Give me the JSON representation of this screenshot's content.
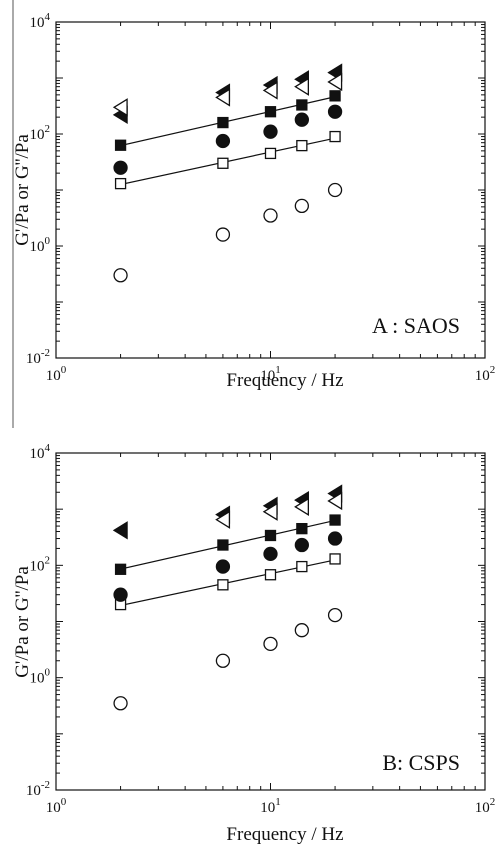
{
  "chart_data": [
    {
      "type": "scatter",
      "panel_label": "A : SAOS",
      "xlabel": "Frequency / Hz",
      "ylabel": "G'/Pa or G''/Pa",
      "x_scale": "log",
      "y_scale": "log",
      "xlim": [
        1,
        100
      ],
      "ylim": [
        0.01,
        10000
      ],
      "x_ticks": [
        {
          "base": "10",
          "exp": "0",
          "value": 1
        },
        {
          "base": "10",
          "exp": "1",
          "value": 10
        },
        {
          "base": "10",
          "exp": "2",
          "value": 100
        }
      ],
      "y_ticks": [
        {
          "base": "10",
          "exp": "-2",
          "value": 0.01
        },
        {
          "base": "10",
          "exp": "0",
          "value": 1
        },
        {
          "base": "10",
          "exp": "2",
          "value": 100
        },
        {
          "base": "10",
          "exp": "4",
          "value": 10000
        }
      ],
      "series": [
        {
          "marker": "square-filled",
          "fit_line": true,
          "x": [
            2,
            6,
            10,
            14,
            20
          ],
          "y": [
            63,
            160,
            250,
            330,
            480
          ]
        },
        {
          "marker": "square-open",
          "fit_line": true,
          "x": [
            2,
            6,
            10,
            14,
            20
          ],
          "y": [
            13,
            30,
            45,
            62,
            90
          ]
        },
        {
          "marker": "circle-filled",
          "fit_line": false,
          "x": [
            2,
            6,
            10,
            14,
            20
          ],
          "y": [
            25,
            75,
            110,
            180,
            250
          ]
        },
        {
          "marker": "circle-open",
          "fit_line": false,
          "x": [
            2,
            6,
            10,
            14,
            20
          ],
          "y": [
            0.3,
            1.6,
            3.5,
            5.2,
            10
          ]
        },
        {
          "marker": "triangle-left-filled",
          "fit_line": false,
          "x": [
            2,
            6,
            10,
            14,
            20
          ],
          "y": [
            220,
            550,
            750,
            950,
            1250
          ]
        },
        {
          "marker": "triangle-left-open",
          "fit_line": false,
          "x": [
            2,
            6,
            10,
            14,
            20
          ],
          "y": [
            300,
            450,
            600,
            700,
            850
          ]
        }
      ]
    },
    {
      "type": "scatter",
      "panel_label": "B: CSPS",
      "xlabel": "Frequency / Hz",
      "ylabel": "G'/Pa or G''/Pa",
      "x_scale": "log",
      "y_scale": "log",
      "xlim": [
        1,
        100
      ],
      "ylim": [
        0.01,
        10000
      ],
      "x_ticks": [
        {
          "base": "10",
          "exp": "0",
          "value": 1
        },
        {
          "base": "10",
          "exp": "1",
          "value": 10
        },
        {
          "base": "10",
          "exp": "2",
          "value": 100
        }
      ],
      "y_ticks": [
        {
          "base": "10",
          "exp": "-2",
          "value": 0.01
        },
        {
          "base": "10",
          "exp": "0",
          "value": 1
        },
        {
          "base": "10",
          "exp": "2",
          "value": 100
        },
        {
          "base": "10",
          "exp": "4",
          "value": 10000
        }
      ],
      "series": [
        {
          "marker": "square-filled",
          "fit_line": true,
          "x": [
            2,
            6,
            10,
            14,
            20
          ],
          "y": [
            85,
            230,
            340,
            450,
            640
          ]
        },
        {
          "marker": "square-open",
          "fit_line": true,
          "x": [
            2,
            6,
            10,
            14,
            20
          ],
          "y": [
            20,
            45,
            68,
            95,
            130
          ]
        },
        {
          "marker": "circle-filled",
          "fit_line": false,
          "x": [
            2,
            6,
            10,
            14,
            20
          ],
          "y": [
            30,
            95,
            160,
            230,
            300
          ]
        },
        {
          "marker": "circle-open",
          "fit_line": false,
          "x": [
            2,
            6,
            10,
            14,
            20
          ],
          "y": [
            0.35,
            2,
            4,
            7,
            13
          ]
        },
        {
          "marker": "triangle-left-filled",
          "fit_line": false,
          "x": [
            2,
            6,
            10,
            14,
            20
          ],
          "y": [
            420,
            800,
            1150,
            1450,
            1900
          ]
        },
        {
          "marker": "triangle-left-open",
          "fit_line": false,
          "x": [
            6,
            10,
            14,
            20
          ],
          "y": [
            650,
            900,
            1100,
            1400
          ]
        }
      ]
    }
  ]
}
